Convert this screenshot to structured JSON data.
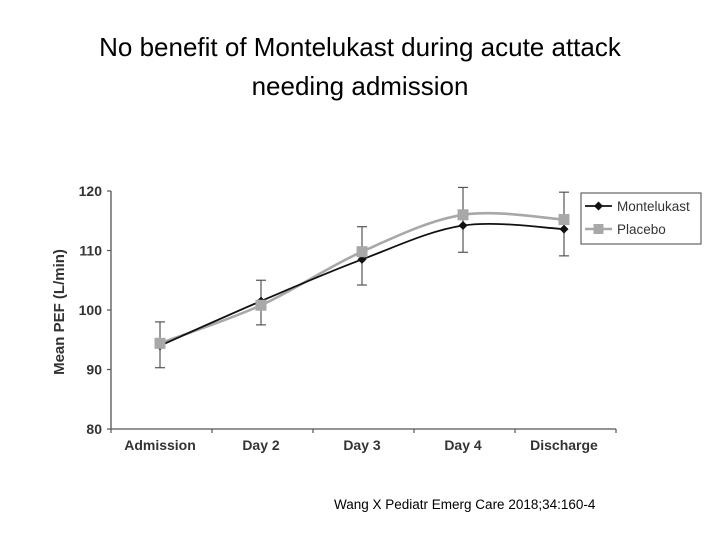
{
  "slide": {
    "title_line1": "No benefit of Montelukast during acute attack",
    "title_line2": "needing admission",
    "citation": "Wang X Pediatr Emerg Care 2018;34:160-4"
  },
  "chart_data": {
    "type": "line",
    "title": "No benefit of Montelukast during acute attack needing admission",
    "xlabel": "",
    "ylabel": "Mean PEF (L/min)",
    "categories": [
      "Admission",
      "Day 2",
      "Day 3",
      "Day 4",
      "Discharge"
    ],
    "ylim": [
      80,
      120
    ],
    "yticks": [
      80,
      90,
      100,
      110,
      120
    ],
    "legend_position": "top-right",
    "series": [
      {
        "name": "Montelukast",
        "marker": "diamond",
        "color": "#111111",
        "values": [
          94,
          101.5,
          108.5,
          114.2,
          113.6
        ],
        "error_lower": [
          90.3,
          97.5,
          104.2,
          109.7,
          109.1
        ],
        "error_upper": [
          98.0,
          105.0,
          114.0,
          120.6,
          119.8
        ]
      },
      {
        "name": "Placebo",
        "marker": "square",
        "color": "#a8a8a8",
        "values": [
          94.4,
          100.8,
          109.8,
          116.0,
          115.2
        ],
        "error_lower": [
          90.3,
          97.5,
          104.2,
          109.7,
          109.1
        ],
        "error_upper": [
          98.0,
          105.0,
          114.0,
          120.6,
          119.8
        ]
      }
    ]
  }
}
